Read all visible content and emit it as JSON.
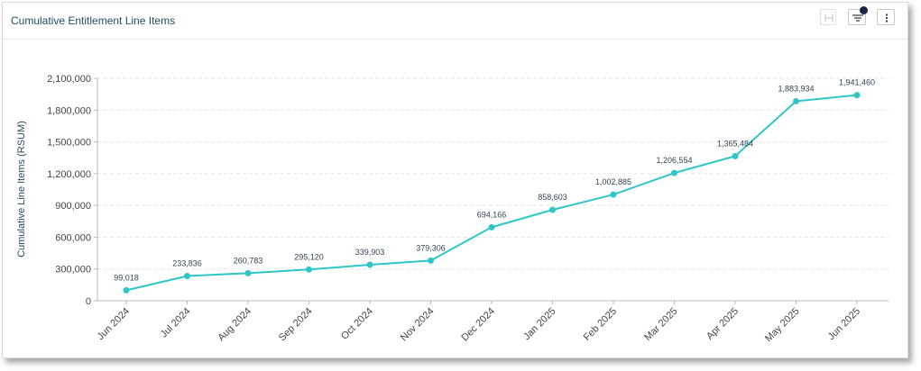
{
  "panel": {
    "title": "Cumulative Entitlement Line Items"
  },
  "toolbar": {
    "fit_icon": "fit-width-icon",
    "filter_icon": "filter-icon",
    "more_icon": "more-vertical-icon",
    "filter_badge_color": "#1b2340"
  },
  "chart_data": {
    "type": "line",
    "categories": [
      "Jun 2024",
      "Jul 2024",
      "Aug 2024",
      "Sep 2024",
      "Oct 2024",
      "Nov 2024",
      "Dec 2024",
      "Jan 2025",
      "Feb 2025",
      "Mar 2025",
      "Apr 2025",
      "May 2025",
      "Jun 2025"
    ],
    "series": [
      {
        "values": [
          99018,
          233836,
          260783,
          295120,
          339903,
          379306,
          694166,
          858603,
          1002885,
          1206554,
          1365484,
          1883934,
          1941460
        ],
        "data_labels": [
          "99,018",
          "233,836",
          "260,783",
          "295,120",
          "339,903",
          "379,306",
          "694,166",
          "858,603",
          "1,002,885",
          "1,206,554",
          "1,365,484",
          "1,883,934",
          "1,941,460"
        ],
        "color": "#2ec6c6"
      }
    ],
    "ylabel": "Cumulative Line Items (RSUM)",
    "xlabel": "",
    "ylim": [
      0,
      2100000
    ],
    "yticks": [
      0,
      300000,
      600000,
      900000,
      1200000,
      1500000,
      1800000,
      2100000
    ],
    "ytick_labels": [
      "0",
      "300,000",
      "600,000",
      "900,000",
      "1,200,000",
      "1,500,000",
      "1,800,000",
      "2,100,000"
    ],
    "grid": true,
    "grid_color": "#e6e6e6",
    "axis_color": "#bbbbbb"
  }
}
